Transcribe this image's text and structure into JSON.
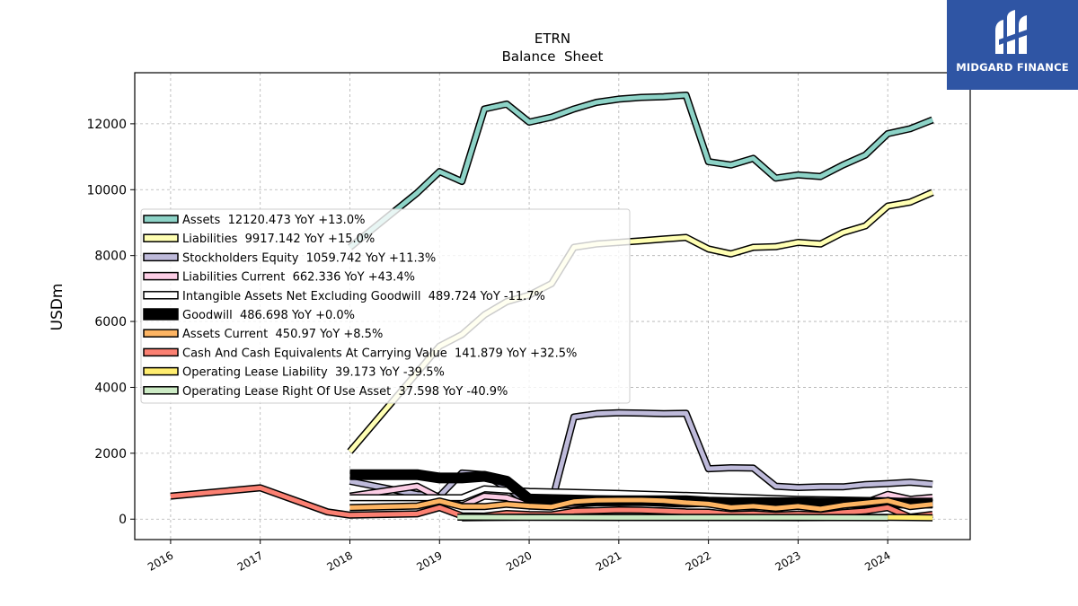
{
  "brand": {
    "name": "MIDGARD FINANCE",
    "color": "#2f55a4"
  },
  "chart_data": {
    "type": "line",
    "title": "ETRN",
    "subtitle": "Balance  Sheet",
    "xlabel": "",
    "ylabel": "USDm",
    "xlim": [
      2015.6,
      2024.92
    ],
    "ylim": [
      -620,
      13550
    ],
    "grid": true,
    "legend_position": "center-left",
    "x_ticks": [
      2016,
      2017,
      2018,
      2019,
      2020,
      2021,
      2022,
      2023,
      2024
    ],
    "x_tick_labels": [
      "2016",
      "2017",
      "2018",
      "2019",
      "2020",
      "2021",
      "2022",
      "2023",
      "2024"
    ],
    "y_ticks": [
      0,
      2000,
      4000,
      6000,
      8000,
      10000,
      12000
    ],
    "y_tick_labels": [
      "0",
      "2000",
      "4000",
      "6000",
      "8000",
      "10000",
      "12000"
    ],
    "series": [
      {
        "name": "Assets",
        "legend": "Assets  12120.473 YoY +13.0%",
        "color": "#8dd3c7",
        "width": 5,
        "points": [
          [
            2018.0,
            8250
          ],
          [
            2018.75,
            9900
          ],
          [
            2019.0,
            10550
          ],
          [
            2019.25,
            10250
          ],
          [
            2019.5,
            12450
          ],
          [
            2019.75,
            12600
          ],
          [
            2020.0,
            12050
          ],
          [
            2020.25,
            12200
          ],
          [
            2020.5,
            12450
          ],
          [
            2020.75,
            12650
          ],
          [
            2021.0,
            12750
          ],
          [
            2021.25,
            12800
          ],
          [
            2021.5,
            12820
          ],
          [
            2021.75,
            12870
          ],
          [
            2022.0,
            10850
          ],
          [
            2022.25,
            10750
          ],
          [
            2022.5,
            10950
          ],
          [
            2022.75,
            10350
          ],
          [
            2023.0,
            10450
          ],
          [
            2023.25,
            10400
          ],
          [
            2023.5,
            10750
          ],
          [
            2023.75,
            11050
          ],
          [
            2024.0,
            11700
          ],
          [
            2024.25,
            11850
          ],
          [
            2024.5,
            12120
          ]
        ]
      },
      {
        "name": "Liabilities",
        "legend": "Liabilities  9917.142 YoY +15.0%",
        "color": "#ffffb3",
        "width": 5,
        "points": [
          [
            2018.0,
            2050
          ],
          [
            2019.0,
            5250
          ],
          [
            2019.25,
            5600
          ],
          [
            2019.5,
            6200
          ],
          [
            2019.75,
            6600
          ],
          [
            2020.0,
            6800
          ],
          [
            2020.25,
            7150
          ],
          [
            2020.5,
            8250
          ],
          [
            2020.75,
            8350
          ],
          [
            2021.0,
            8400
          ],
          [
            2021.25,
            8450
          ],
          [
            2021.5,
            8500
          ],
          [
            2021.75,
            8550
          ],
          [
            2022.0,
            8200
          ],
          [
            2022.25,
            8050
          ],
          [
            2022.5,
            8250
          ],
          [
            2022.75,
            8270
          ],
          [
            2023.0,
            8400
          ],
          [
            2023.25,
            8350
          ],
          [
            2023.5,
            8700
          ],
          [
            2023.75,
            8900
          ],
          [
            2024.0,
            9500
          ],
          [
            2024.25,
            9620
          ],
          [
            2024.5,
            9917
          ]
        ]
      },
      {
        "name": "Stockholders Equity",
        "legend": "Stockholders Equity  1059.742 YoY +11.3%",
        "color": "#bebada",
        "width": 5,
        "points": [
          [
            2018.0,
            1150
          ],
          [
            2018.75,
            750
          ],
          [
            2019.0,
            700
          ],
          [
            2019.25,
            1400
          ],
          [
            2019.5,
            1350
          ],
          [
            2019.75,
            950
          ],
          [
            2020.0,
            480
          ],
          [
            2020.25,
            500
          ],
          [
            2020.5,
            3100
          ],
          [
            2020.75,
            3200
          ],
          [
            2021.0,
            3230
          ],
          [
            2021.25,
            3220
          ],
          [
            2021.5,
            3200
          ],
          [
            2021.75,
            3210
          ],
          [
            2022.0,
            1530
          ],
          [
            2022.25,
            1560
          ],
          [
            2022.5,
            1550
          ],
          [
            2022.75,
            1000
          ],
          [
            2023.0,
            960
          ],
          [
            2023.25,
            980
          ],
          [
            2023.5,
            980
          ],
          [
            2023.75,
            1050
          ],
          [
            2024.0,
            1080
          ],
          [
            2024.25,
            1120
          ],
          [
            2024.5,
            1060
          ]
        ]
      },
      {
        "name": "Liabilities Current",
        "legend": "Liabilities Current  662.336 YoY +43.4%",
        "color": "#fccde5",
        "width": 5,
        "points": [
          [
            2018.0,
            700
          ],
          [
            2018.75,
            1000
          ],
          [
            2019.0,
            650
          ],
          [
            2019.25,
            400
          ],
          [
            2019.5,
            700
          ],
          [
            2019.75,
            650
          ],
          [
            2020.0,
            400
          ],
          [
            2020.25,
            400
          ],
          [
            2020.5,
            450
          ],
          [
            2020.75,
            500
          ],
          [
            2021.0,
            500
          ],
          [
            2021.25,
            520
          ],
          [
            2021.5,
            480
          ],
          [
            2021.75,
            460
          ],
          [
            2022.0,
            480
          ],
          [
            2022.25,
            370
          ],
          [
            2022.5,
            380
          ],
          [
            2022.75,
            360
          ],
          [
            2023.0,
            420
          ],
          [
            2023.25,
            330
          ],
          [
            2023.5,
            420
          ],
          [
            2023.75,
            500
          ],
          [
            2024.0,
            750
          ],
          [
            2024.25,
            600
          ],
          [
            2024.5,
            662
          ]
        ]
      },
      {
        "name": "Intangible Assets Net Excluding Goodwill",
        "legend": "Intangible Assets Net Excluding Goodwill  489.724 YoY -11.7%",
        "color": "#ffffff",
        "width": 5,
        "points": [
          [
            2018.0,
            650
          ],
          [
            2019.0,
            650
          ],
          [
            2019.25,
            650
          ],
          [
            2019.5,
            920
          ],
          [
            2019.75,
            880
          ],
          [
            2020.0,
            840
          ],
          [
            2021.0,
            780
          ],
          [
            2022.0,
            700
          ],
          [
            2023.0,
            600
          ],
          [
            2024.0,
            555
          ],
          [
            2024.5,
            490
          ]
        ]
      },
      {
        "name": "Goodwill",
        "legend": "Goodwill  486.698 YoY +0.0%",
        "color": "#000000",
        "width": 9,
        "points": [
          [
            2018.0,
            1350
          ],
          [
            2018.25,
            1350
          ],
          [
            2018.5,
            1350
          ],
          [
            2018.75,
            1350
          ],
          [
            2019.0,
            1250
          ],
          [
            2019.25,
            1250
          ],
          [
            2019.5,
            1300
          ],
          [
            2019.75,
            1150
          ],
          [
            2020.0,
            600
          ],
          [
            2020.25,
            560
          ],
          [
            2020.5,
            560
          ],
          [
            2020.75,
            560
          ],
          [
            2021.0,
            560
          ],
          [
            2021.25,
            560
          ],
          [
            2021.5,
            560
          ],
          [
            2021.75,
            560
          ],
          [
            2022.0,
            520
          ],
          [
            2022.25,
            500
          ],
          [
            2022.5,
            500
          ],
          [
            2022.75,
            500
          ],
          [
            2023.0,
            500
          ],
          [
            2023.25,
            490
          ],
          [
            2023.5,
            490
          ],
          [
            2023.75,
            490
          ],
          [
            2024.0,
            487
          ],
          [
            2024.25,
            487
          ],
          [
            2024.5,
            487
          ]
        ]
      },
      {
        "name": "Assets Current",
        "legend": "Assets Current  450.97 YoY +8.5%",
        "color": "#fdb462",
        "width": 5,
        "points": [
          [
            2018.0,
            350
          ],
          [
            2018.75,
            400
          ],
          [
            2019.0,
            550
          ],
          [
            2019.25,
            380
          ],
          [
            2019.5,
            380
          ],
          [
            2019.75,
            450
          ],
          [
            2020.0,
            400
          ],
          [
            2020.25,
            370
          ],
          [
            2020.5,
            530
          ],
          [
            2020.75,
            570
          ],
          [
            2021.0,
            580
          ],
          [
            2021.25,
            580
          ],
          [
            2021.5,
            560
          ],
          [
            2021.75,
            500
          ],
          [
            2022.0,
            460
          ],
          [
            2022.25,
            350
          ],
          [
            2022.5,
            390
          ],
          [
            2022.75,
            330
          ],
          [
            2023.0,
            390
          ],
          [
            2023.25,
            310
          ],
          [
            2023.5,
            420
          ],
          [
            2023.75,
            490
          ],
          [
            2024.0,
            560
          ],
          [
            2024.25,
            380
          ],
          [
            2024.5,
            451
          ]
        ]
      },
      {
        "name": "Cash And Cash Equivalents At Carrying Value",
        "legend": "Cash And Cash Equivalents At Carrying Value  141.879 YoY +32.5%",
        "color": "#fb8072",
        "width": 5,
        "points": [
          [
            2016.0,
            700
          ],
          [
            2017.0,
            950
          ],
          [
            2017.75,
            220
          ],
          [
            2018.0,
            120
          ],
          [
            2018.75,
            160
          ],
          [
            2019.0,
            350
          ],
          [
            2019.25,
            100
          ],
          [
            2019.5,
            90
          ],
          [
            2019.75,
            170
          ],
          [
            2020.0,
            140
          ],
          [
            2020.25,
            130
          ],
          [
            2020.5,
            240
          ],
          [
            2020.75,
            260
          ],
          [
            2021.0,
            280
          ],
          [
            2021.25,
            270
          ],
          [
            2021.5,
            250
          ],
          [
            2021.75,
            220
          ],
          [
            2022.0,
            210
          ],
          [
            2022.25,
            140
          ],
          [
            2022.5,
            160
          ],
          [
            2022.75,
            120
          ],
          [
            2023.0,
            150
          ],
          [
            2023.25,
            120
          ],
          [
            2023.5,
            200
          ],
          [
            2023.75,
            250
          ],
          [
            2024.0,
            350
          ],
          [
            2024.25,
            60
          ],
          [
            2024.5,
            142
          ]
        ]
      },
      {
        "name": "Operating Lease Liability",
        "legend": "Operating Lease Liability  39.173 YoY -39.5%",
        "color": "#ffed6f",
        "width": 5,
        "points": [
          [
            2019.25,
            40
          ],
          [
            2020.0,
            60
          ],
          [
            2021.0,
            55
          ],
          [
            2022.0,
            50
          ],
          [
            2023.0,
            45
          ],
          [
            2024.0,
            55
          ],
          [
            2024.5,
            39
          ]
        ]
      },
      {
        "name": "Operating Lease Right Of Use Asset",
        "legend": "Operating Lease Right Of Use Asset  37.598 YoY -40.9%",
        "color": "#ccebc5",
        "width": 5,
        "points": [
          [
            2019.2,
            60
          ],
          [
            2020.0,
            55
          ],
          [
            2021.0,
            50
          ],
          [
            2022.0,
            50
          ],
          [
            2023.0,
            50
          ],
          [
            2024.0,
            45
          ]
        ]
      }
    ]
  }
}
